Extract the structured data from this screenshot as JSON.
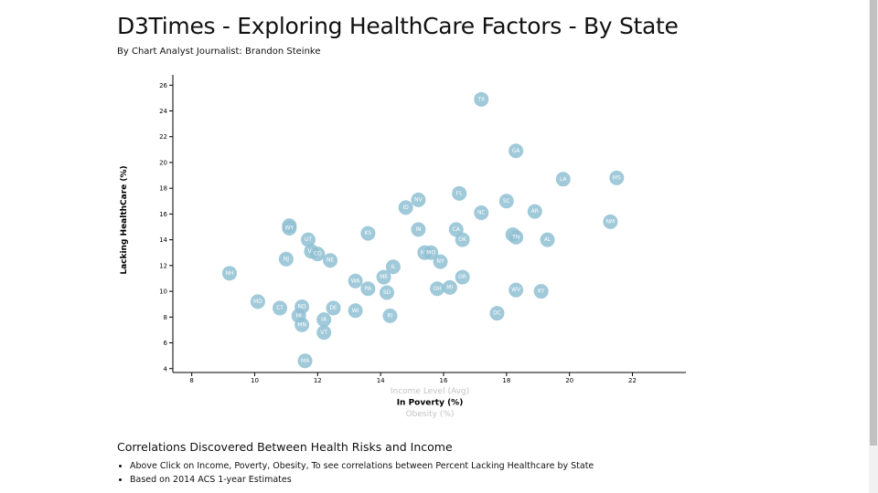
{
  "header": {
    "title": "D3Times - Exploring HealthCare Factors - By State",
    "byline": "By Chart Analyst Journalist: Brandon Steinke"
  },
  "chart_data": {
    "type": "scatter",
    "ylabel": "Lacking HealthCare (%)",
    "xlabels": [
      {
        "text": "Income Level (Avg)",
        "active": false
      },
      {
        "text": "In Poverty (%)",
        "active": true
      },
      {
        "text": "Obesity (%)",
        "active": false
      }
    ],
    "xlim": [
      7.4,
      23.7
    ],
    "ylim": [
      3.7,
      26.8
    ],
    "xticks": [
      8,
      10,
      12,
      14,
      16,
      18,
      20,
      22
    ],
    "yticks": [
      4,
      6,
      8,
      10,
      12,
      14,
      16,
      18,
      20,
      22,
      24,
      26
    ],
    "marker_color": "#8fbfd2",
    "label_color": "#ffffff",
    "points": [
      {
        "abbr": "TX",
        "x": 17.2,
        "y": 24.9
      },
      {
        "abbr": "GA",
        "x": 18.3,
        "y": 20.9
      },
      {
        "abbr": "LA",
        "x": 19.8,
        "y": 18.7
      },
      {
        "abbr": "MS",
        "x": 21.5,
        "y": 18.8
      },
      {
        "abbr": "FL",
        "x": 16.5,
        "y": 17.6
      },
      {
        "abbr": "NV",
        "x": 15.2,
        "y": 17.1
      },
      {
        "abbr": "SC",
        "x": 18.0,
        "y": 17.0
      },
      {
        "abbr": "ID",
        "x": 14.8,
        "y": 16.5
      },
      {
        "abbr": "NC",
        "x": 17.2,
        "y": 16.1
      },
      {
        "abbr": "AR",
        "x": 18.9,
        "y": 16.2
      },
      {
        "abbr": "NM",
        "x": 21.3,
        "y": 15.4
      },
      {
        "abbr": "AK",
        "x": 11.1,
        "y": 15.1
      },
      {
        "abbr": "WY",
        "x": 11.1,
        "y": 14.9
      },
      {
        "abbr": "IN",
        "x": 15.2,
        "y": 14.8
      },
      {
        "abbr": "CA",
        "x": 16.4,
        "y": 14.8
      },
      {
        "abbr": "KS",
        "x": 13.6,
        "y": 14.5
      },
      {
        "abbr": "AZ",
        "x": 18.2,
        "y": 14.4
      },
      {
        "abbr": "TN",
        "x": 18.3,
        "y": 14.2
      },
      {
        "abbr": "OK",
        "x": 16.6,
        "y": 14.0
      },
      {
        "abbr": "AL",
        "x": 19.3,
        "y": 14.0
      },
      {
        "abbr": "UT",
        "x": 11.7,
        "y": 14.0
      },
      {
        "abbr": "VA",
        "x": 11.8,
        "y": 13.1
      },
      {
        "abbr": "CO",
        "x": 12.0,
        "y": 12.9
      },
      {
        "abbr": "MT",
        "x": 15.4,
        "y": 13.0
      },
      {
        "abbr": "MO",
        "x": 15.6,
        "y": 13.0
      },
      {
        "abbr": "NJ",
        "x": 11.0,
        "y": 12.5
      },
      {
        "abbr": "NE",
        "x": 12.4,
        "y": 12.4
      },
      {
        "abbr": "NY",
        "x": 15.9,
        "y": 12.3
      },
      {
        "abbr": "IL",
        "x": 14.4,
        "y": 11.9
      },
      {
        "abbr": "NH",
        "x": 9.2,
        "y": 11.4
      },
      {
        "abbr": "ME",
        "x": 14.1,
        "y": 11.1
      },
      {
        "abbr": "OR",
        "x": 16.6,
        "y": 11.1
      },
      {
        "abbr": "WA",
        "x": 13.2,
        "y": 10.8
      },
      {
        "abbr": "PA",
        "x": 13.6,
        "y": 10.2
      },
      {
        "abbr": "OH",
        "x": 15.8,
        "y": 10.2
      },
      {
        "abbr": "MI",
        "x": 16.2,
        "y": 10.3
      },
      {
        "abbr": "WV",
        "x": 18.3,
        "y": 10.1
      },
      {
        "abbr": "KY",
        "x": 19.1,
        "y": 10.0
      },
      {
        "abbr": "SD",
        "x": 14.2,
        "y": 9.9
      },
      {
        "abbr": "MD",
        "x": 10.1,
        "y": 9.2
      },
      {
        "abbr": "CT",
        "x": 10.8,
        "y": 8.7
      },
      {
        "abbr": "ND",
        "x": 11.5,
        "y": 8.8
      },
      {
        "abbr": "DE",
        "x": 12.5,
        "y": 8.7
      },
      {
        "abbr": "WI",
        "x": 13.2,
        "y": 8.5
      },
      {
        "abbr": "DC",
        "x": 17.7,
        "y": 8.3
      },
      {
        "abbr": "HI",
        "x": 11.4,
        "y": 8.1
      },
      {
        "abbr": "RI",
        "x": 14.3,
        "y": 8.1
      },
      {
        "abbr": "IA",
        "x": 12.2,
        "y": 7.8
      },
      {
        "abbr": "MN",
        "x": 11.5,
        "y": 7.4
      },
      {
        "abbr": "VT",
        "x": 12.2,
        "y": 6.8
      },
      {
        "abbr": "MA",
        "x": 11.6,
        "y": 4.6
      }
    ]
  },
  "notes": {
    "heading": "Correlations Discovered Between Health Risks and Income",
    "items": [
      "Above Click on Income, Poverty, Obesity, To see correlations between Percent Lacking Healthcare by State",
      "Based on 2014 ACS 1-year Estimates"
    ]
  }
}
